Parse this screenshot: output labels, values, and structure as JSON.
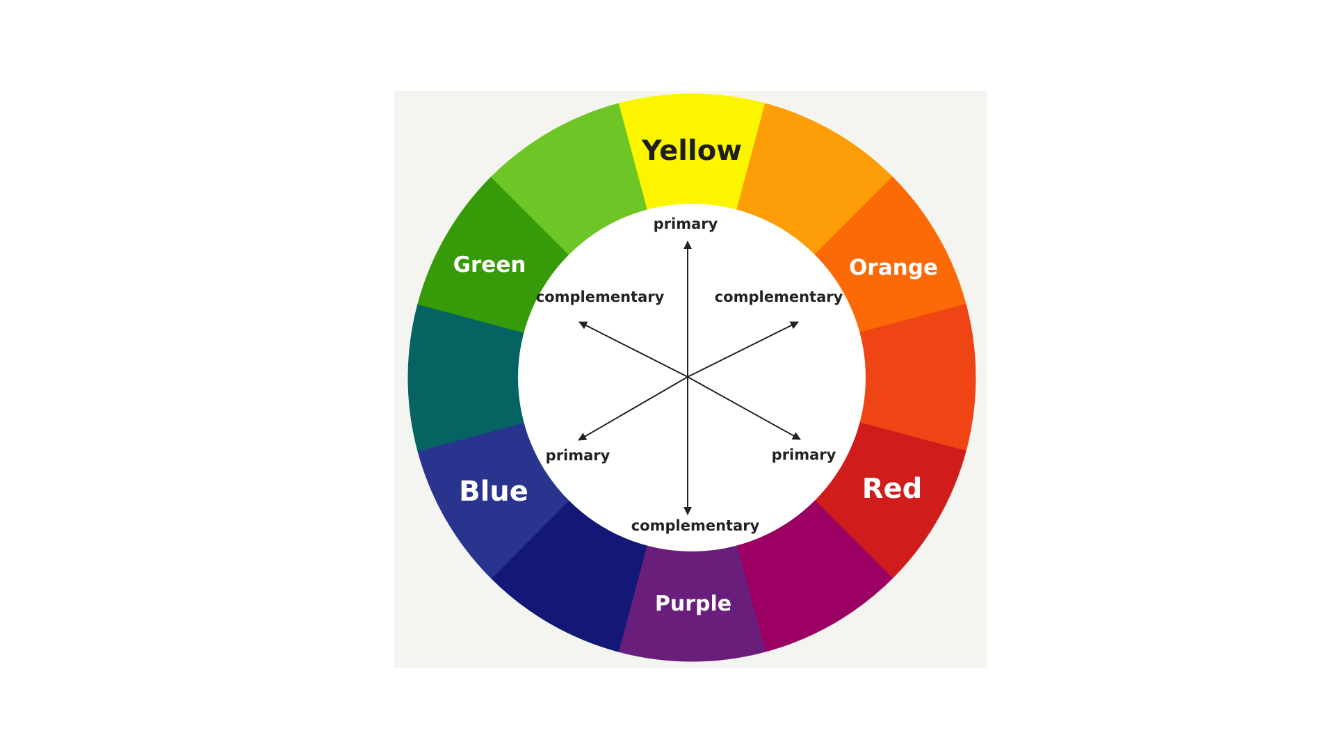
{
  "diagram": {
    "segments": [
      {
        "id": "yellow",
        "color": "#fbf600",
        "label": "Yellow"
      },
      {
        "id": "yellow-orange",
        "color": "#fd9d08",
        "label": ""
      },
      {
        "id": "orange",
        "color": "#fc6a07",
        "label": "Orange"
      },
      {
        "id": "red-orange",
        "color": "#ef4515",
        "label": ""
      },
      {
        "id": "red",
        "color": "#d11c1c",
        "label": "Red"
      },
      {
        "id": "red-purple",
        "color": "#9c0063",
        "label": ""
      },
      {
        "id": "purple",
        "color": "#6a1e7c",
        "label": "Purple"
      },
      {
        "id": "blue-purple",
        "color": "#131877",
        "label": ""
      },
      {
        "id": "blue",
        "color": "#29348f",
        "label": "Blue"
      },
      {
        "id": "blue-green",
        "color": "#056462",
        "label": ""
      },
      {
        "id": "green",
        "color": "#369a09",
        "label": "Green"
      },
      {
        "id": "yellow-green",
        "color": "#6dc526",
        "label": ""
      }
    ],
    "label_colors": {
      "yellow": "#1e1e1e",
      "default": "#ffffff"
    },
    "axis_labels": {
      "top": "primary",
      "upper_left": "complementary",
      "upper_right": "complementary",
      "lower_left": "primary",
      "lower_right": "primary",
      "bottom": "complementary"
    },
    "colors": {
      "inner_circle": "#ffffff",
      "arrow": "#222222",
      "panel_background": "#f4f5f1"
    }
  }
}
